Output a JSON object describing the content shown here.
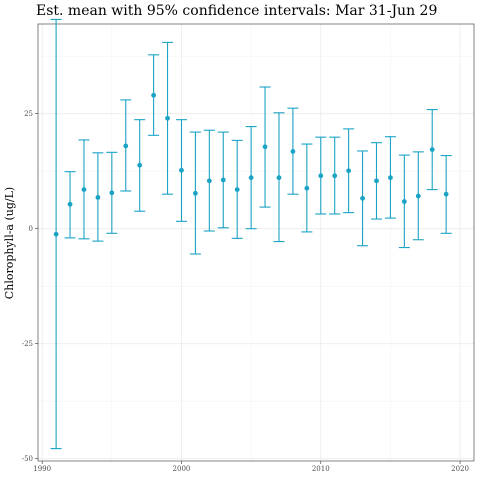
{
  "chart_data": {
    "type": "scatter",
    "title": "Est. mean with 95% confidence intervals: Mar 31-Jun 29",
    "xlabel": "",
    "ylabel": "Chlorophyll-a (ug/L)",
    "xlim": [
      1989.7,
      2021.0
    ],
    "ylim": [
      -0.505,
      0.445
    ],
    "x_ticks": [
      1990,
      2000,
      2010,
      2020
    ],
    "x_tick_labels": [
      "1990",
      "2000",
      "2010",
      "2020"
    ],
    "y_ticks": [
      -0.5,
      -0.25,
      0,
      0.25
    ],
    "y_tick_labels": [
      "-50",
      "-25",
      "0",
      "25"
    ],
    "grid": true,
    "color": "#1aa3c4",
    "series": [
      {
        "points": [
          {
            "x": 1991,
            "y": -0.012,
            "lower": -0.478,
            "upper": 0.455
          },
          {
            "x": 1992,
            "y": 0.053,
            "lower": -0.02,
            "upper": 0.124
          },
          {
            "x": 1993,
            "y": 0.085,
            "lower": -0.022,
            "upper": 0.193
          },
          {
            "x": 1994,
            "y": 0.068,
            "lower": -0.027,
            "upper": 0.165
          },
          {
            "x": 1995,
            "y": 0.078,
            "lower": -0.01,
            "upper": 0.166
          },
          {
            "x": 1996,
            "y": 0.18,
            "lower": 0.082,
            "upper": 0.28
          },
          {
            "x": 1997,
            "y": 0.138,
            "lower": 0.038,
            "upper": 0.237
          },
          {
            "x": 1998,
            "y": 0.29,
            "lower": 0.203,
            "upper": 0.378
          },
          {
            "x": 1999,
            "y": 0.24,
            "lower": 0.075,
            "upper": 0.405
          },
          {
            "x": 2000,
            "y": 0.127,
            "lower": 0.016,
            "upper": 0.237
          },
          {
            "x": 2001,
            "y": 0.077,
            "lower": -0.055,
            "upper": 0.21
          },
          {
            "x": 2002,
            "y": 0.104,
            "lower": -0.005,
            "upper": 0.214
          },
          {
            "x": 2003,
            "y": 0.106,
            "lower": 0.002,
            "upper": 0.21
          },
          {
            "x": 2004,
            "y": 0.085,
            "lower": -0.021,
            "upper": 0.192
          },
          {
            "x": 2005,
            "y": 0.111,
            "lower": 0.0,
            "upper": 0.222
          },
          {
            "x": 2006,
            "y": 0.178,
            "lower": 0.047,
            "upper": 0.308
          },
          {
            "x": 2007,
            "y": 0.111,
            "lower": -0.028,
            "upper": 0.252
          },
          {
            "x": 2008,
            "y": 0.168,
            "lower": 0.075,
            "upper": 0.262
          },
          {
            "x": 2009,
            "y": 0.088,
            "lower": -0.007,
            "upper": 0.184
          },
          {
            "x": 2010,
            "y": 0.115,
            "lower": 0.032,
            "upper": 0.199
          },
          {
            "x": 2011,
            "y": 0.115,
            "lower": 0.032,
            "upper": 0.199
          },
          {
            "x": 2012,
            "y": 0.126,
            "lower": 0.035,
            "upper": 0.217
          },
          {
            "x": 2013,
            "y": 0.066,
            "lower": -0.037,
            "upper": 0.169
          },
          {
            "x": 2014,
            "y": 0.104,
            "lower": 0.021,
            "upper": 0.187
          },
          {
            "x": 2015,
            "y": 0.111,
            "lower": 0.023,
            "upper": 0.2
          },
          {
            "x": 2016,
            "y": 0.059,
            "lower": -0.041,
            "upper": 0.16
          },
          {
            "x": 2017,
            "y": 0.071,
            "lower": -0.024,
            "upper": 0.167
          },
          {
            "x": 2018,
            "y": 0.172,
            "lower": 0.085,
            "upper": 0.259
          },
          {
            "x": 2019,
            "y": 0.075,
            "lower": -0.01,
            "upper": 0.159
          }
        ]
      }
    ]
  }
}
